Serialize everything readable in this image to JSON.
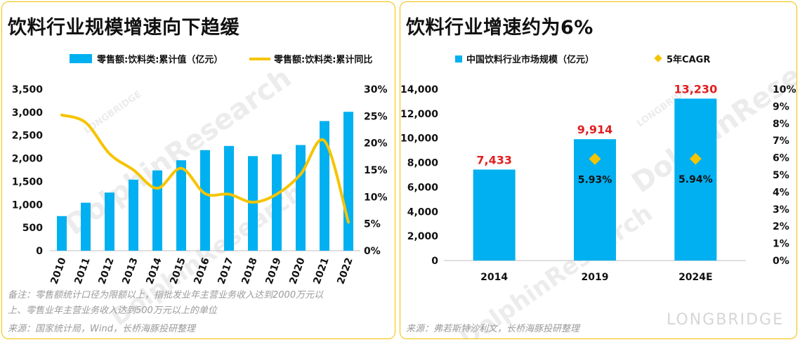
{
  "left": {
    "title": "饮料行业规模增速向下趋缓",
    "legend_bar": "零售额:饮料类:累计值（亿元）",
    "legend_line": "零售额:饮料类:累计同比",
    "note_line1": "备注：零售额统计口径为限额以上，指批发业年主营业务收入达到2000万元以",
    "note_line2": "上、零售业年主营业务收入达到500万元以上的单位",
    "source": "来源：国家统计局，Wind，长桥海豚投研整理"
  },
  "right": {
    "title": "饮料行业增速约为6%",
    "legend_bar": "中国饮料行业市场规模（亿元）",
    "legend_marker": "5年CAGR",
    "source": "来源：弗若斯特沙利文，长桥海豚投研整理"
  },
  "watermark": {
    "top": "LONGBRIDGE",
    "main": "DolphinResearch",
    "brand": "LONGBRIDGE"
  },
  "colors": {
    "bar": "#00b0f0",
    "line": "#f5c400",
    "marker": "#f5c400",
    "label_red": "#e02020",
    "border": "#f2c100"
  },
  "chart_data": [
    {
      "type": "bar",
      "title": "饮料行业规模增速向下趋缓",
      "categories": [
        "2010",
        "2011",
        "2012",
        "2013",
        "2014",
        "2015",
        "2016",
        "2017",
        "2018",
        "2019",
        "2020",
        "2021",
        "2022"
      ],
      "series": [
        {
          "name": "零售额:饮料类:累计值（亿元）",
          "type": "bar",
          "axis": "left",
          "values": [
            750,
            1040,
            1260,
            1540,
            1740,
            1960,
            2180,
            2270,
            2050,
            2090,
            2290,
            2810,
            3010
          ]
        },
        {
          "name": "零售额:饮料类:累计同比",
          "type": "line",
          "axis": "right",
          "values": [
            25.2,
            23.8,
            18.0,
            15.0,
            11.6,
            15.3,
            10.6,
            10.5,
            9.0,
            10.5,
            14.2,
            20.4,
            5.3
          ]
        }
      ],
      "y_left": {
        "range": [
          0,
          3500
        ],
        "ticks": [
          "0",
          "500",
          "1,000",
          "1,500",
          "2,000",
          "2,500",
          "3,000",
          "3,500"
        ]
      },
      "y_right": {
        "range": [
          0,
          30
        ],
        "ticks": [
          "0%",
          "5%",
          "10%",
          "15%",
          "20%",
          "25%",
          "30%"
        ]
      },
      "grid": false,
      "legend": "top"
    },
    {
      "type": "bar",
      "title": "饮料行业增速约为6%",
      "categories": [
        "2014",
        "2019",
        "2024E"
      ],
      "series": [
        {
          "name": "中国饮料行业市场规模（亿元）",
          "type": "bar",
          "axis": "left",
          "values": [
            7433,
            9914,
            13230
          ],
          "labels": [
            "7,433",
            "9,914",
            "13,230"
          ]
        },
        {
          "name": "5年CAGR",
          "type": "scatter",
          "axis": "right",
          "values": [
            null,
            5.93,
            5.94
          ],
          "labels": [
            "",
            "5.93%",
            "5.94%"
          ]
        }
      ],
      "y_left": {
        "range": [
          0,
          14000
        ],
        "ticks": [
          "0",
          "2,000",
          "4,000",
          "6,000",
          "8,000",
          "10,000",
          "12,000",
          "14,000"
        ]
      },
      "y_right": {
        "range": [
          0,
          10
        ],
        "ticks": [
          "0%",
          "1%",
          "2%",
          "3%",
          "4%",
          "5%",
          "6%",
          "7%",
          "8%",
          "9%",
          "10%"
        ]
      },
      "grid": false,
      "legend": "top"
    }
  ]
}
